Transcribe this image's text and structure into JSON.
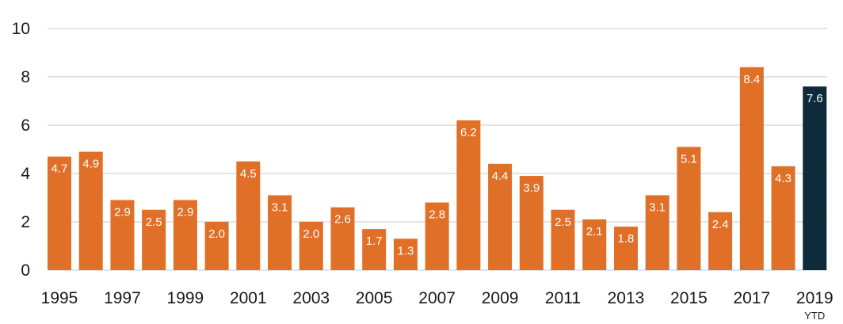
{
  "chart_data": {
    "type": "bar",
    "categories": [
      "1995",
      "1996",
      "1997",
      "1998",
      "1999",
      "2000",
      "2001",
      "2002",
      "2003",
      "2004",
      "2005",
      "2006",
      "2007",
      "2008",
      "2009",
      "2010",
      "2011",
      "2012",
      "2013",
      "2014",
      "2015",
      "2016",
      "2017",
      "2018",
      "2019"
    ],
    "values": [
      4.7,
      4.9,
      2.9,
      2.5,
      2.9,
      2.0,
      4.5,
      3.1,
      2.0,
      2.6,
      1.7,
      1.3,
      2.8,
      6.2,
      4.4,
      3.9,
      2.5,
      2.1,
      1.8,
      3.1,
      5.1,
      2.4,
      8.4,
      4.3,
      7.6
    ],
    "value_labels": [
      "4.7",
      "4.9",
      "2.9",
      "2.5",
      "2.9",
      "2.0",
      "4.5",
      "3.1",
      "2.0",
      "2.6",
      "1.7",
      "1.3",
      "2.8",
      "6.2",
      "4.4",
      "3.9",
      "2.5",
      "2.1",
      "1.8",
      "3.1",
      "5.1",
      "2.4",
      "8.4",
      "4.3",
      "7.6"
    ],
    "x_tick_labels": [
      "1995",
      "1997",
      "1999",
      "2001",
      "2003",
      "2005",
      "2007",
      "2009",
      "2011",
      "2013",
      "2015",
      "2017",
      "2019"
    ],
    "x_tick_categories": [
      "1995",
      "1997",
      "1999",
      "2001",
      "2003",
      "2005",
      "2007",
      "2009",
      "2011",
      "2013",
      "2015",
      "2017",
      "2019"
    ],
    "x_sublabel": {
      "category": "2019",
      "text": "YTD"
    },
    "highlight_category": "2019",
    "y_ticks": [
      0,
      2,
      4,
      6,
      8,
      10
    ],
    "y_tick_labels": [
      "0",
      "2",
      "4",
      "6",
      "8",
      "10"
    ],
    "ylim": [
      0,
      10
    ],
    "grid": true,
    "legend": "none",
    "title": "",
    "xlabel": "",
    "ylabel": "",
    "colors": {
      "bar": "#e07028",
      "highlight": "#0d2b3a",
      "grid": "#c8c8c8",
      "text": "#1a1a1a",
      "bar_label": "#ffffff"
    }
  }
}
